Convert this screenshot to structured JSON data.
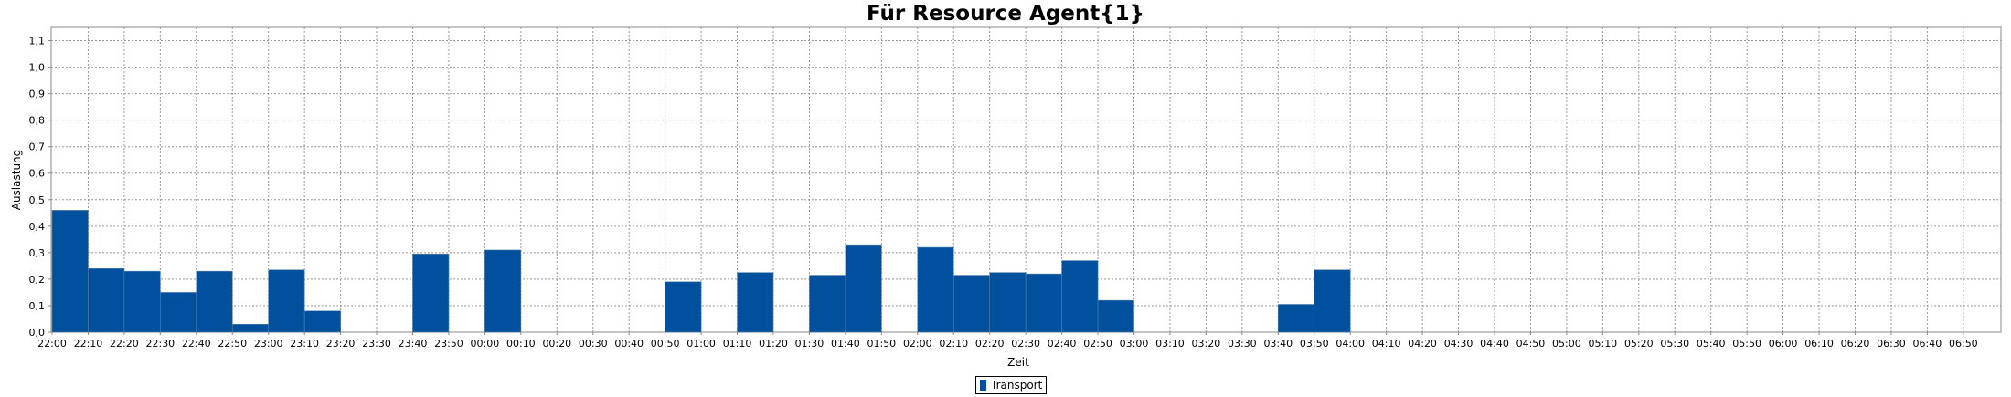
{
  "chart_data": {
    "type": "bar",
    "title": "Für Resource Agent{1}",
    "xlabel": "Zeit",
    "ylabel": "Auslastung",
    "ylim": [
      0,
      1.15
    ],
    "yticks": [
      "0,0",
      "0,1",
      "0,2",
      "0,3",
      "0,4",
      "0,5",
      "0,6",
      "0,7",
      "0,8",
      "0,9",
      "1,0",
      "1,1"
    ],
    "grid": true,
    "legend_position": "bottom-center",
    "categories": [
      "22:00",
      "22:10",
      "22:20",
      "22:30",
      "22:40",
      "22:50",
      "23:00",
      "23:10",
      "23:20",
      "23:30",
      "23:40",
      "23:50",
      "00:00",
      "00:10",
      "00:20",
      "00:30",
      "00:40",
      "00:50",
      "01:00",
      "01:10",
      "01:20",
      "01:30",
      "01:40",
      "01:50",
      "02:00",
      "02:10",
      "02:20",
      "02:30",
      "02:40",
      "02:50",
      "03:00",
      "03:10",
      "03:20",
      "03:30",
      "03:40",
      "03:50",
      "04:00",
      "04:10",
      "04:20",
      "04:30",
      "04:40",
      "04:50",
      "05:00",
      "05:10",
      "05:20",
      "05:30",
      "05:40",
      "05:50",
      "06:00",
      "06:10",
      "06:20",
      "06:30",
      "06:40",
      "06:50"
    ],
    "series": [
      {
        "name": "Transport",
        "color": "#00509d",
        "values": [
          0.46,
          0.24,
          0.23,
          0.15,
          0.23,
          0.03,
          0.235,
          0.08,
          0,
          0,
          0.295,
          0,
          0.31,
          0,
          0,
          0,
          0,
          0.19,
          0,
          0.225,
          0,
          0.215,
          0.33,
          0,
          0.32,
          0.215,
          0.225,
          0.22,
          0.27,
          0.12,
          0,
          0,
          0,
          0,
          0.105,
          0.235,
          0,
          0,
          0,
          0,
          0,
          0,
          0,
          0,
          0,
          0,
          0,
          0,
          0,
          0,
          0,
          0,
          0,
          0
        ]
      }
    ]
  }
}
